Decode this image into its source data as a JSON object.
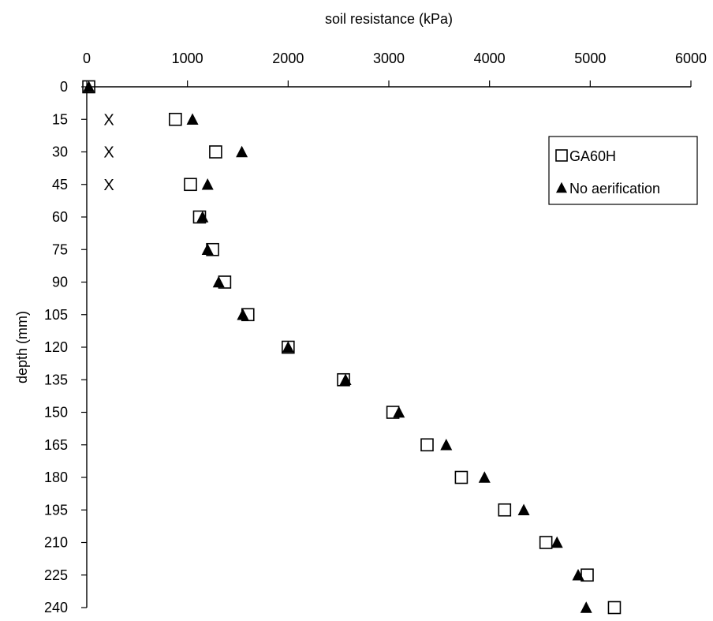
{
  "chart_data": {
    "type": "scatter",
    "title": "",
    "xlabel": "soil resistance (kPa)",
    "ylabel": "depth (mm)",
    "xlim": [
      0,
      6000
    ],
    "ylim": [
      0,
      240
    ],
    "y_reversed": true,
    "x_axis_position": "top",
    "x_ticks": [
      "0",
      "1000",
      "2000",
      "3000",
      "4000",
      "5000",
      "6000"
    ],
    "y_ticks": [
      "0",
      "15",
      "30",
      "45",
      "60",
      "75",
      "90",
      "105",
      "120",
      "135",
      "150",
      "165",
      "180",
      "195",
      "210",
      "225",
      "240"
    ],
    "grid": false,
    "legend_position": "top-right",
    "series": [
      {
        "name": "GA60H",
        "marker": "open-square",
        "color": "#000000",
        "points": [
          {
            "x": 20,
            "y": 0
          },
          {
            "x": 880,
            "y": 15
          },
          {
            "x": 1280,
            "y": 30
          },
          {
            "x": 1030,
            "y": 45
          },
          {
            "x": 1120,
            "y": 60
          },
          {
            "x": 1250,
            "y": 75
          },
          {
            "x": 1370,
            "y": 90
          },
          {
            "x": 1600,
            "y": 105
          },
          {
            "x": 2000,
            "y": 120
          },
          {
            "x": 2550,
            "y": 135
          },
          {
            "x": 3040,
            "y": 150
          },
          {
            "x": 3380,
            "y": 165
          },
          {
            "x": 3720,
            "y": 180
          },
          {
            "x": 4150,
            "y": 195
          },
          {
            "x": 4560,
            "y": 210
          },
          {
            "x": 4970,
            "y": 225
          },
          {
            "x": 5240,
            "y": 240
          }
        ]
      },
      {
        "name": "No aerification",
        "marker": "filled-triangle",
        "color": "#000000",
        "points": [
          {
            "x": 20,
            "y": 0
          },
          {
            "x": 1050,
            "y": 15
          },
          {
            "x": 1540,
            "y": 30
          },
          {
            "x": 1200,
            "y": 45
          },
          {
            "x": 1150,
            "y": 60
          },
          {
            "x": 1200,
            "y": 75
          },
          {
            "x": 1310,
            "y": 90
          },
          {
            "x": 1550,
            "y": 105
          },
          {
            "x": 2000,
            "y": 120
          },
          {
            "x": 2570,
            "y": 135
          },
          {
            "x": 3100,
            "y": 150
          },
          {
            "x": 3570,
            "y": 165
          },
          {
            "x": 3950,
            "y": 180
          },
          {
            "x": 4340,
            "y": 195
          },
          {
            "x": 4670,
            "y": 210
          },
          {
            "x": 4880,
            "y": 225
          },
          {
            "x": 4960,
            "y": 240
          }
        ]
      }
    ],
    "annotations": [
      {
        "text": "X",
        "x": 220,
        "y": 15
      },
      {
        "text": "X",
        "x": 220,
        "y": 30
      },
      {
        "text": "X",
        "x": 220,
        "y": 45
      }
    ]
  }
}
